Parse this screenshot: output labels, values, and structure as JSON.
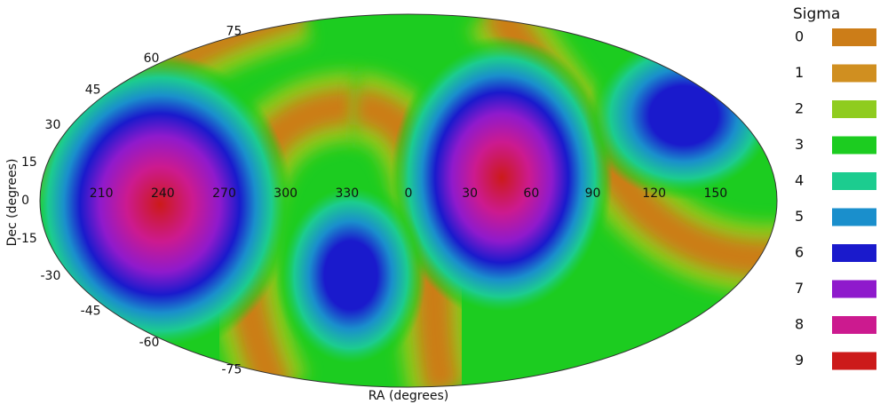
{
  "chart_data": {
    "type": "mollweide",
    "x_label": "RA (degrees)",
    "y_label": "Dec (degrees)",
    "xticks": [
      210,
      240,
      270,
      300,
      330,
      0,
      30,
      60,
      90,
      120,
      150
    ],
    "yticks": [
      75,
      60,
      45,
      30,
      15,
      0,
      -15,
      -30,
      -45,
      -60,
      -75
    ],
    "legend_title": "Sigma",
    "categories": [
      0,
      1,
      2,
      3,
      4,
      5,
      6,
      7,
      8,
      9
    ],
    "colors": [
      "#cc7d18",
      "#d08f20",
      "#8fcc1f",
      "#1ccc20",
      "#1ccc8f",
      "#1a8fcc",
      "#1a1acc",
      "#8f1acc",
      "#cc1a8f",
      "#cc1a1a"
    ]
  }
}
